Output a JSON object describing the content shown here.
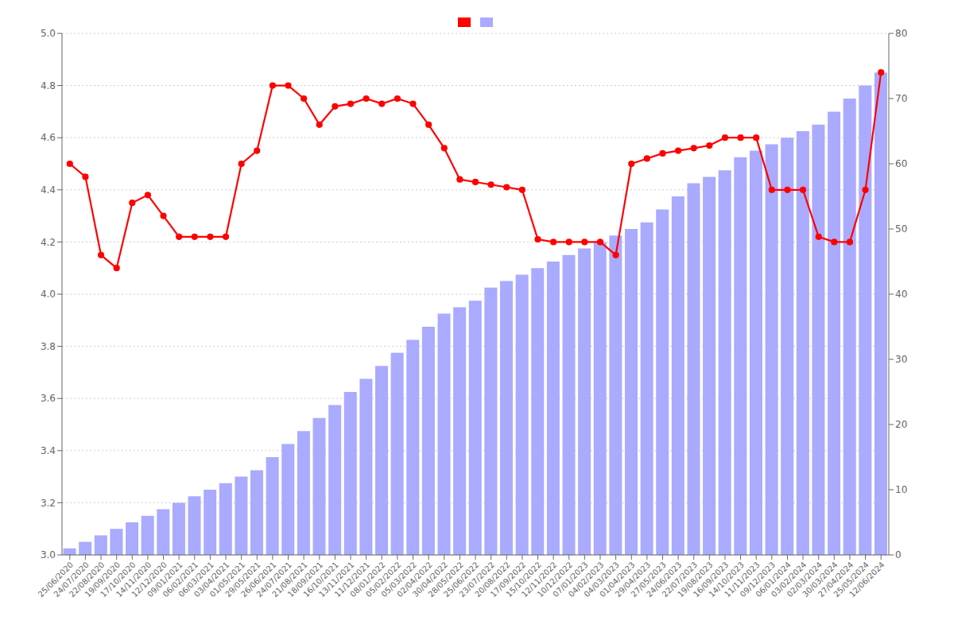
{
  "chart_data": {
    "type": "combo",
    "categories": [
      "25/06/2020",
      "24/07/2020",
      "22/08/2020",
      "19/09/2020",
      "17/10/2020",
      "14/11/2020",
      "12/12/2020",
      "09/01/2021",
      "06/02/2021",
      "06/03/2021",
      "03/04/2021",
      "01/05/2021",
      "29/05/2021",
      "26/06/2021",
      "24/07/2021",
      "21/08/2021",
      "18/09/2021",
      "16/10/2021",
      "13/11/2021",
      "11/12/2021",
      "08/01/2022",
      "05/02/2022",
      "05/03/2022",
      "02/04/2022",
      "30/04/2022",
      "28/05/2022",
      "25/06/2022",
      "23/07/2022",
      "20/08/2022",
      "17/09/2022",
      "15/10/2022",
      "12/11/2022",
      "10/12/2022",
      "07/01/2023",
      "04/02/2023",
      "04/03/2023",
      "01/04/2023",
      "29/04/2023",
      "27/05/2023",
      "24/06/2023",
      "22/07/2023",
      "19/08/2023",
      "16/09/2023",
      "14/10/2023",
      "11/11/2023",
      "09/12/2023",
      "06/01/2024",
      "03/02/2024",
      "02/03/2024",
      "30/03/2024",
      "27/04/2024",
      "25/05/2024",
      "12/06/2024"
    ],
    "series": [
      {
        "type": "line",
        "color": "#ff0000",
        "marker": "circle",
        "values": [
          4.5,
          4.45,
          4.15,
          4.1,
          4.35,
          4.38,
          4.3,
          4.22,
          4.22,
          4.22,
          4.22,
          4.5,
          4.55,
          4.8,
          4.8,
          4.75,
          4.65,
          4.72,
          4.73,
          4.75,
          4.73,
          4.75,
          4.73,
          4.65,
          4.56,
          4.44,
          4.43,
          4.42,
          4.41,
          4.4,
          4.21,
          4.2,
          4.2,
          4.2,
          4.2,
          4.15,
          4.5,
          4.52,
          4.54,
          4.55,
          4.56,
          4.57,
          4.6,
          4.6,
          4.6,
          4.4,
          4.4,
          4.4,
          4.22,
          4.2,
          4.2,
          4.4,
          4.85
        ]
      },
      {
        "type": "bar",
        "color": "#aaaaff",
        "axis": "y2",
        "values": [
          1,
          2,
          3,
          4,
          5,
          6,
          7,
          8,
          9,
          10,
          11,
          12,
          13,
          15,
          17,
          19,
          21,
          23,
          25,
          27,
          29,
          31,
          33,
          35,
          37,
          38,
          39,
          41,
          42,
          43,
          44,
          45,
          46,
          47,
          48,
          49,
          50,
          51,
          53,
          55,
          57,
          58,
          59,
          61,
          62,
          63,
          64,
          65,
          66,
          68,
          70,
          72,
          74
        ]
      }
    ],
    "ylim": [
      3.0,
      5.0
    ],
    "yticks": [
      {
        "value": 3.0,
        "label": "3.0"
      },
      3.2,
      3.4,
      3.6,
      3.8,
      {
        "value": 4.0,
        "label": "4.0"
      },
      4.2,
      4.4,
      4.6,
      4.8,
      {
        "value": 5.0,
        "label": "5.0"
      }
    ],
    "y2lim": [
      0,
      80
    ],
    "y2ticks": [
      0,
      10,
      20,
      30,
      40,
      50,
      60,
      70,
      80
    ],
    "grid": true,
    "legend": "top"
  }
}
